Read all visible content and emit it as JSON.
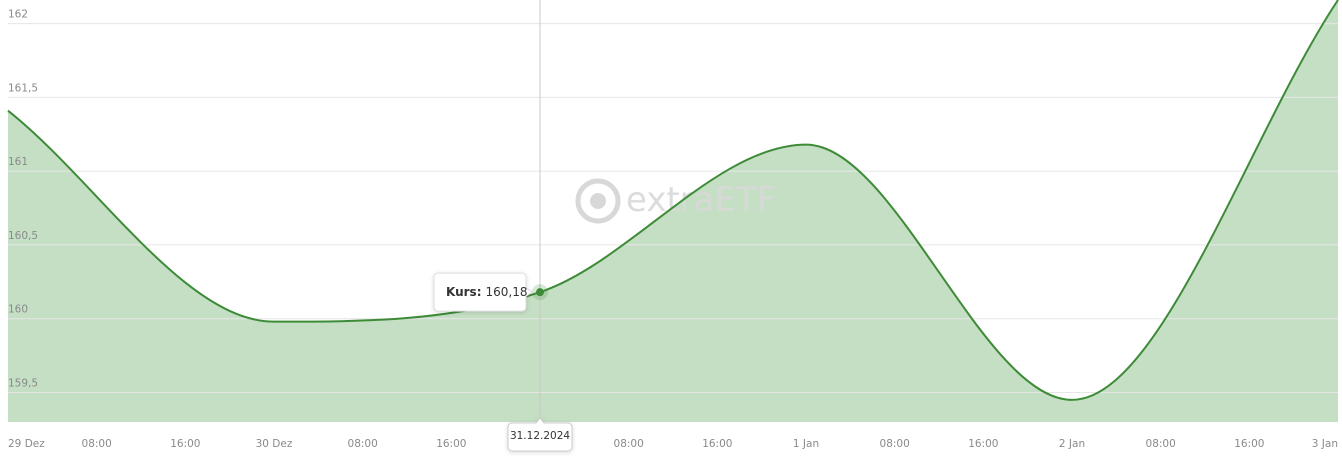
{
  "chart_data": {
    "type": "area",
    "x": [
      0,
      24,
      48,
      72,
      96,
      120
    ],
    "values": [
      161.41,
      159.98,
      160.18,
      161.18,
      159.45,
      162.16
    ],
    "color": "#3d8b37",
    "fill": "#c5dfc5",
    "xlim": [
      0,
      120
    ],
    "xticks": [
      {
        "value": 0,
        "label": "29 Dez"
      },
      {
        "value": 8,
        "label": "08:00"
      },
      {
        "value": 16,
        "label": "16:00"
      },
      {
        "value": 24,
        "label": "30 Dez"
      },
      {
        "value": 32,
        "label": "08:00"
      },
      {
        "value": 40,
        "label": "16:00"
      },
      {
        "value": 56,
        "label": "08:00"
      },
      {
        "value": 64,
        "label": "16:00"
      },
      {
        "value": 72,
        "label": "1 Jan"
      },
      {
        "value": 80,
        "label": "08:00"
      },
      {
        "value": 88,
        "label": "16:00"
      },
      {
        "value": 96,
        "label": "2 Jan"
      },
      {
        "value": 104,
        "label": "08:00"
      },
      {
        "value": 112,
        "label": "16:00"
      },
      {
        "value": 120,
        "label": "3 Jan"
      }
    ],
    "ylim": [
      159.3,
      162.16
    ],
    "yticks": [
      {
        "value": 159.5,
        "label": "159,5"
      },
      160,
      {
        "value": 160.5,
        "label": "160,5"
      },
      161,
      {
        "value": 161.5,
        "label": "161,5"
      },
      162
    ],
    "grid": true,
    "tooltip": {
      "index": 2,
      "label": "Kurs:",
      "value_label": "160,18",
      "date": "31.12.2024"
    },
    "watermark": [
      "extra",
      "ETF"
    ]
  }
}
